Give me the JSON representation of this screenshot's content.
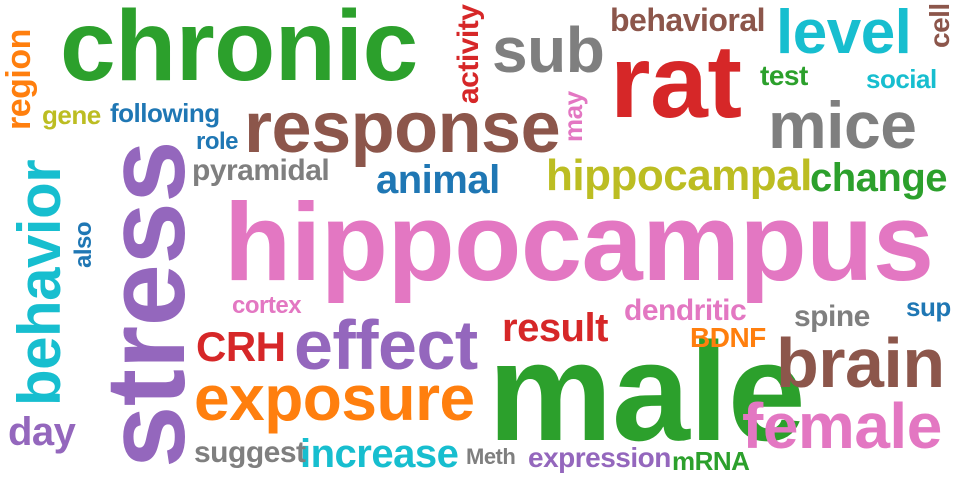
{
  "palette": {
    "green": "#2ca02c",
    "red": "#d62728",
    "pink": "#e377c2",
    "purple": "#9467bd",
    "brown": "#8c564b",
    "gray": "#7f7f7f",
    "olive": "#bcbd22",
    "cyan": "#17becf",
    "blue": "#1f77b4",
    "orange": "#ff7f0e"
  },
  "words": {
    "hippocampus": "hippocampus",
    "stress": "stress",
    "male": "male",
    "chronic": "chronic",
    "rat": "rat",
    "response": "response",
    "exposure": "exposure",
    "effect": "effect",
    "brain": "brain",
    "female": "female",
    "mice": "mice",
    "behavior": "behavior",
    "sub": "sub",
    "level": "level",
    "hippocampal": "hippocampal",
    "change": "change",
    "animal": "animal",
    "result": "result",
    "increase": "increase",
    "expression": "expression",
    "behavioral": "behavioral",
    "CRH": "CRH",
    "region": "region",
    "activity": "activity",
    "day": "day",
    "dendritic": "dendritic",
    "BDNF": "BDNF",
    "spine": "spine",
    "suggest": "suggest",
    "mRNA": "mRNA",
    "social": "social",
    "test": "test",
    "cell": "cell",
    "gene": "gene",
    "following": "following",
    "role": "role",
    "pyramidal": "pyramidal",
    "may": "may",
    "cortex": "cortex",
    "sup": "sup",
    "also": "also",
    "Meth": "Meth"
  }
}
